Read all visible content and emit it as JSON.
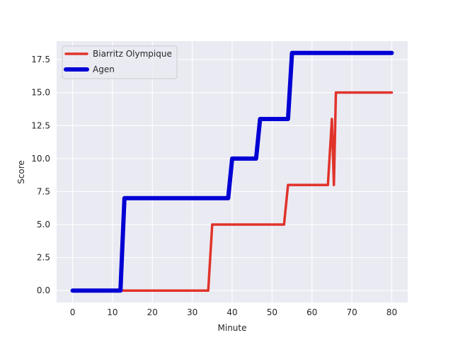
{
  "chart_data": {
    "type": "line",
    "title": "",
    "xlabel": "Minute",
    "ylabel": "Score",
    "xlim": [
      -4,
      84
    ],
    "ylim": [
      -0.9,
      18.9
    ],
    "xticks": [
      0,
      10,
      20,
      30,
      40,
      50,
      60,
      70,
      80
    ],
    "yticks": [
      0.0,
      2.5,
      5.0,
      7.5,
      10.0,
      12.5,
      15.0,
      17.5
    ],
    "ytick_labels": [
      "0.0",
      "2.5",
      "5.0",
      "7.5",
      "10.0",
      "12.5",
      "15.0",
      "17.5"
    ],
    "xtick_labels": [
      "0",
      "10",
      "20",
      "30",
      "40",
      "50",
      "60",
      "70",
      "80"
    ],
    "grid": true,
    "legend": "top-left",
    "background": "#eaeaf2",
    "series": [
      {
        "name": "Biarritz Olympique",
        "color": "#e0332a",
        "x": [
          0,
          34,
          35,
          53,
          54,
          64,
          65,
          65.5,
          66,
          80
        ],
        "y": [
          0,
          0,
          5,
          5,
          8,
          8,
          13,
          8,
          15,
          15
        ]
      },
      {
        "name": "Agen",
        "color": "#0000d4",
        "x": [
          0,
          12,
          13,
          39,
          40,
          46,
          47,
          54,
          55,
          80
        ],
        "y": [
          0,
          0,
          7,
          7,
          10,
          10,
          13,
          13,
          18,
          18
        ]
      }
    ]
  }
}
